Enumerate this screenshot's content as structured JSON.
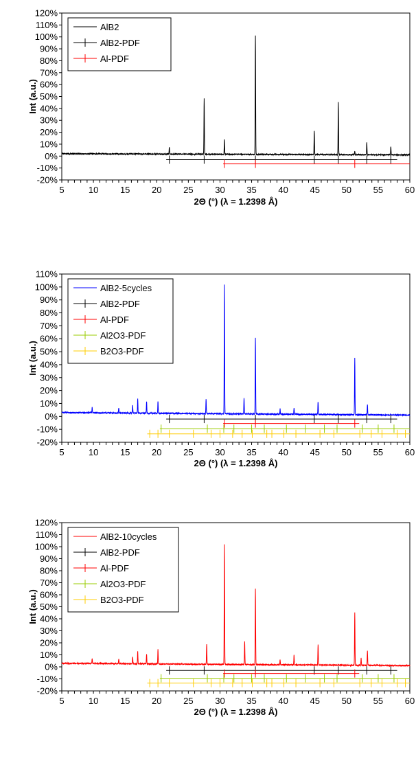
{
  "chart_data": [
    {
      "type": "line",
      "xlabel": "2Θ (°) (λ = 1.2398 Å)",
      "ylabel": "Int (a.u.)",
      "xlim": [
        5,
        60
      ],
      "ylim": [
        -20,
        120
      ],
      "x_ticks": [
        5,
        10,
        15,
        20,
        25,
        30,
        35,
        40,
        45,
        50,
        55,
        60
      ],
      "y_ticks": [
        -20,
        -10,
        0,
        10,
        20,
        30,
        40,
        50,
        60,
        70,
        80,
        90,
        100,
        110,
        120
      ],
      "y_tick_labels": [
        "-20%",
        "-10%",
        "0%",
        "10%",
        "20%",
        "30%",
        "40%",
        "50%",
        "60%",
        "70%",
        "80%",
        "90%",
        "100%",
        "110%",
        "120%"
      ],
      "legend_position": "top-left",
      "pattern": {
        "name": "AlB2",
        "color": "#000000",
        "baseline_start": 2.0,
        "baseline_end": 1.0,
        "peaks": [
          [
            22.0,
            6
          ],
          [
            27.5,
            47
          ],
          [
            30.7,
            12
          ],
          [
            35.6,
            100
          ],
          [
            44.9,
            20
          ],
          [
            48.7,
            44
          ],
          [
            51.3,
            3
          ],
          [
            53.2,
            10
          ],
          [
            57.0,
            7
          ]
        ]
      },
      "reference_series": [
        {
          "name": "AlB2-PDF",
          "color": "#000000",
          "y": -3,
          "x_range": [
            21.5,
            58
          ],
          "markers": [
            22.0,
            27.5,
            35.6,
            44.9,
            48.7,
            53.2,
            57.0
          ]
        },
        {
          "name": "Al-PDF",
          "color": "#ff0000",
          "y": -6.5,
          "x_range": [
            30.5,
            60
          ],
          "markers": [
            30.7,
            35.6,
            51.3
          ]
        }
      ]
    },
    {
      "type": "line",
      "xlabel": "2Θ (°) (λ = 1.2398 Å)",
      "ylabel": "Int (a.u.)",
      "xlim": [
        5,
        60
      ],
      "ylim": [
        -20,
        110
      ],
      "x_ticks": [
        5,
        10,
        15,
        20,
        25,
        30,
        35,
        40,
        45,
        50,
        55,
        60
      ],
      "y_ticks": [
        -20,
        -10,
        0,
        10,
        20,
        30,
        40,
        50,
        60,
        70,
        80,
        90,
        100,
        110
      ],
      "y_tick_labels": [
        "-20%",
        "-10%",
        "0%",
        "10%",
        "20%",
        "30%",
        "40%",
        "50%",
        "60%",
        "70%",
        "80%",
        "90%",
        "100%",
        "110%"
      ],
      "legend_position": "top-left",
      "pattern": {
        "name": "AlB2-5cycles",
        "color": "#0000ff",
        "baseline_start": 3.0,
        "baseline_end": 1.0,
        "peaks": [
          [
            9.8,
            4
          ],
          [
            14.0,
            4
          ],
          [
            16.2,
            6
          ],
          [
            17.0,
            11
          ],
          [
            18.4,
            9
          ],
          [
            20.2,
            9
          ],
          [
            27.8,
            11
          ],
          [
            30.7,
            100
          ],
          [
            33.8,
            12
          ],
          [
            35.6,
            59
          ],
          [
            39.5,
            4
          ],
          [
            41.7,
            5
          ],
          [
            45.5,
            10
          ],
          [
            51.3,
            44
          ],
          [
            53.3,
            8
          ]
        ]
      },
      "reference_series": [
        {
          "name": "AlB2-PDF",
          "color": "#000000",
          "y": -2,
          "x_range": [
            21.5,
            58
          ],
          "markers": [
            22.0,
            27.5,
            35.6,
            44.9,
            48.7,
            53.2,
            57.0
          ]
        },
        {
          "name": "Al-PDF",
          "color": "#ff0000",
          "y": -5.5,
          "x_range": [
            30.5,
            52
          ],
          "markers": [
            30.7,
            35.6,
            51.3
          ]
        },
        {
          "name": "Al2O3-PDF",
          "color": "#99cc00",
          "y": -9.5,
          "x_range": [
            20.5,
            60
          ],
          "markers": [
            20.7,
            28.0,
            30.6,
            32.2,
            35.0,
            37.0,
            40.5,
            43.5,
            46.5,
            48.5,
            52.5,
            55.0,
            57.5
          ]
        },
        {
          "name": "B2O3-PDF",
          "color": "#ffcc00",
          "y": -13.5,
          "x_range": [
            18.5,
            60
          ],
          "markers": [
            18.9,
            20.2,
            22.0,
            25.8,
            28.6,
            30.0,
            32.0,
            33.5,
            35.1,
            37.4,
            38.2,
            40.1,
            42.0,
            45.8,
            48.0,
            52.1,
            53.9,
            55.6,
            58.0,
            59.3
          ]
        }
      ]
    },
    {
      "type": "line",
      "xlabel": "2Θ (°) (λ = 1.2398 Å)",
      "ylabel": "Int (a.u.)",
      "xlim": [
        5,
        60
      ],
      "ylim": [
        -20,
        120
      ],
      "x_ticks": [
        5,
        10,
        15,
        20,
        25,
        30,
        35,
        40,
        45,
        50,
        55,
        60
      ],
      "y_ticks": [
        -20,
        -10,
        0,
        10,
        20,
        30,
        40,
        50,
        60,
        70,
        80,
        90,
        100,
        110,
        120
      ],
      "y_tick_labels": [
        "-20%",
        "-10%",
        "0%",
        "10%",
        "20%",
        "30%",
        "40%",
        "50%",
        "60%",
        "70%",
        "80%",
        "90%",
        "100%",
        "110%",
        "120%"
      ],
      "legend_position": "top-left",
      "pattern": {
        "name": "AlB2-10cycles",
        "color": "#ff0000",
        "baseline_start": 3.0,
        "baseline_end": 1.0,
        "peaks": [
          [
            9.8,
            4
          ],
          [
            14.0,
            4
          ],
          [
            16.2,
            6
          ],
          [
            17.0,
            10
          ],
          [
            18.4,
            8
          ],
          [
            20.2,
            12
          ],
          [
            27.9,
            17
          ],
          [
            30.7,
            100
          ],
          [
            33.9,
            19
          ],
          [
            35.6,
            63
          ],
          [
            39.5,
            4
          ],
          [
            41.7,
            8
          ],
          [
            45.5,
            17
          ],
          [
            51.3,
            44
          ],
          [
            52.3,
            6
          ],
          [
            53.3,
            12
          ]
        ]
      },
      "reference_series": [
        {
          "name": "AlB2-PDF",
          "color": "#000000",
          "y": -3,
          "x_range": [
            21.5,
            58
          ],
          "markers": [
            22.0,
            27.5,
            35.6,
            44.9,
            48.7,
            53.2,
            57.0
          ]
        },
        {
          "name": "Al-PDF",
          "color": "#ff0000",
          "y": -5.5,
          "x_range": [
            30.5,
            52
          ],
          "markers": [
            30.7,
            35.6,
            51.3
          ]
        },
        {
          "name": "Al2O3-PDF",
          "color": "#99cc00",
          "y": -9.5,
          "x_range": [
            20.5,
            60
          ],
          "markers": [
            20.7,
            28.0,
            30.6,
            32.2,
            35.0,
            37.0,
            40.5,
            43.5,
            46.5,
            48.5,
            52.5,
            55.0,
            57.5
          ]
        },
        {
          "name": "B2O3-PDF",
          "color": "#ffcc00",
          "y": -13.5,
          "x_range": [
            18.5,
            60
          ],
          "markers": [
            18.9,
            20.2,
            22.0,
            25.8,
            28.6,
            30.0,
            32.0,
            33.5,
            35.1,
            37.4,
            38.2,
            40.1,
            42.0,
            45.8,
            48.0,
            52.1,
            53.9,
            55.6,
            58.0,
            59.3
          ]
        }
      ]
    }
  ]
}
